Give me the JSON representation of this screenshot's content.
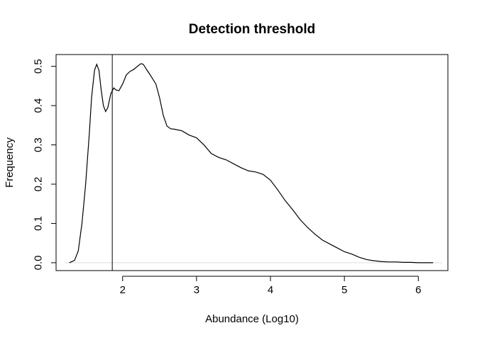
{
  "chart_data": {
    "type": "line",
    "title": "Detection threshold",
    "xlabel": "Abundance (Log10)",
    "ylabel": "Frequency",
    "xlim": [
      1.1,
      6.4
    ],
    "ylim": [
      -0.02,
      0.53
    ],
    "x_ticks": [
      2,
      3,
      4,
      5,
      6
    ],
    "x_tick_labels": [
      "2",
      "3",
      "4",
      "5",
      "6"
    ],
    "y_ticks": [
      0.0,
      0.1,
      0.2,
      0.3,
      0.4,
      0.5
    ],
    "y_tick_labels": [
      "0.0",
      "0.1",
      "0.2",
      "0.3",
      "0.4",
      "0.5"
    ],
    "grid": false,
    "threshold_line": {
      "x": 1.86
    },
    "baseline": {
      "y": 0
    },
    "series": [
      {
        "x": [
          1.28,
          1.35,
          1.4,
          1.45,
          1.5,
          1.55,
          1.58,
          1.62,
          1.65,
          1.68,
          1.71,
          1.74,
          1.77,
          1.8,
          1.84,
          1.88,
          1.91,
          1.95,
          2.0,
          2.05,
          2.1,
          2.15,
          2.2,
          2.25,
          2.28,
          2.32,
          2.36,
          2.4,
          2.45,
          2.5,
          2.55,
          2.6,
          2.65,
          2.7,
          2.8,
          2.9,
          3.0,
          3.1,
          3.2,
          3.3,
          3.4,
          3.5,
          3.6,
          3.7,
          3.8,
          3.9,
          4.0,
          4.1,
          4.2,
          4.3,
          4.4,
          4.5,
          4.6,
          4.7,
          4.8,
          4.9,
          5.0,
          5.1,
          5.2,
          5.3,
          5.4,
          5.5,
          5.6,
          5.7,
          5.8,
          5.9,
          6.0,
          6.1,
          6.2
        ],
        "y": [
          0.0,
          0.006,
          0.03,
          0.1,
          0.2,
          0.33,
          0.42,
          0.49,
          0.505,
          0.49,
          0.44,
          0.4,
          0.385,
          0.395,
          0.43,
          0.445,
          0.44,
          0.438,
          0.455,
          0.478,
          0.487,
          0.492,
          0.5,
          0.507,
          0.505,
          0.493,
          0.482,
          0.47,
          0.455,
          0.42,
          0.375,
          0.348,
          0.341,
          0.34,
          0.336,
          0.325,
          0.318,
          0.3,
          0.278,
          0.268,
          0.262,
          0.252,
          0.242,
          0.234,
          0.231,
          0.225,
          0.21,
          0.185,
          0.158,
          0.135,
          0.11,
          0.09,
          0.073,
          0.058,
          0.048,
          0.038,
          0.028,
          0.022,
          0.014,
          0.008,
          0.005,
          0.003,
          0.002,
          0.002,
          0.001,
          0.001,
          0.0,
          0.0,
          0.0
        ]
      }
    ]
  }
}
